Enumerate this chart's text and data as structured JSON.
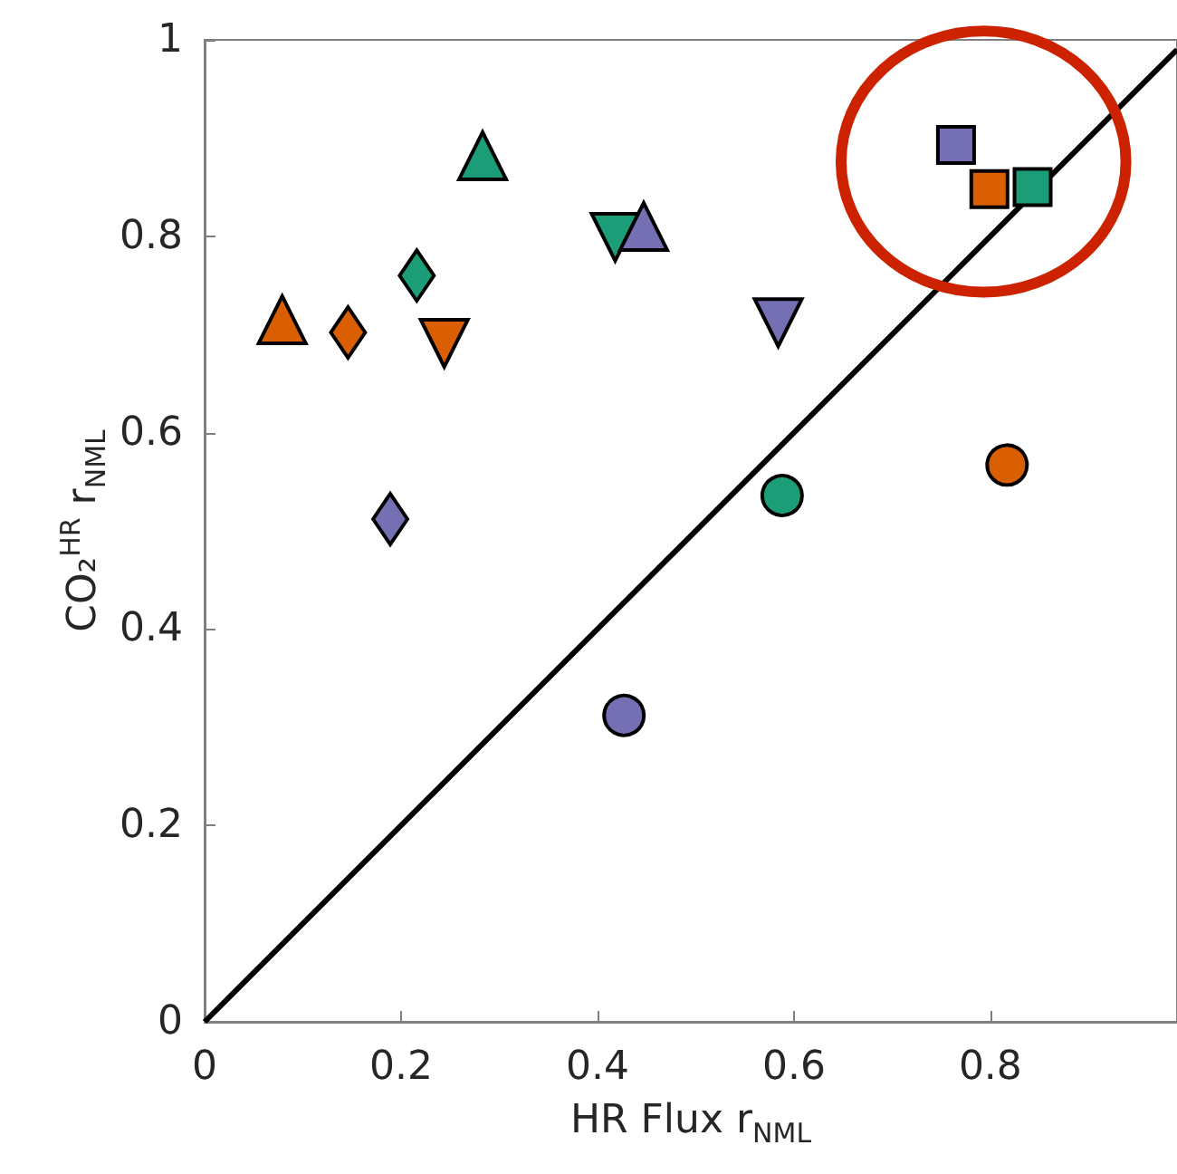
{
  "chart_data": {
    "type": "scatter",
    "xlabel": "HR Flux r$_{NML}$",
    "ylabel": "CO₂$^{HR}$ r$_{NML}$",
    "xlim": [
      0,
      0.99
    ],
    "ylim": [
      0,
      1
    ],
    "xticks": [
      0,
      0.2,
      0.4,
      0.6,
      0.8
    ],
    "yticks": [
      0,
      0.2,
      0.4,
      0.6,
      0.8,
      1
    ],
    "grid": false,
    "series": [
      {
        "type": "line",
        "color": "#000000",
        "marker": "none",
        "line_style": "solid",
        "x": [
          0,
          0.99
        ],
        "values": [
          0,
          0.99
        ]
      },
      {
        "color": "#d95f02",
        "marker": "triangle",
        "x": [
          0.079
        ],
        "values": [
          0.715
        ]
      },
      {
        "color": "#d95f02",
        "marker": "diamond",
        "x": [
          0.146
        ],
        "values": [
          0.702
        ]
      },
      {
        "color": "#d95f02",
        "marker": "triangle-down",
        "x": [
          0.244
        ],
        "values": [
          0.691
        ]
      },
      {
        "color": "#d95f02",
        "marker": "square",
        "x": [
          0.799
        ],
        "values": [
          0.848
        ]
      },
      {
        "color": "#d95f02",
        "marker": "circle",
        "x": [
          0.817
        ],
        "values": [
          0.567
        ]
      },
      {
        "color": "#1b9e77",
        "marker": "triangle",
        "x": [
          0.283
        ],
        "values": [
          0.882
        ]
      },
      {
        "color": "#1b9e77",
        "marker": "diamond",
        "x": [
          0.216
        ],
        "values": [
          0.76
        ]
      },
      {
        "color": "#1b9e77",
        "marker": "triangle-down",
        "x": [
          0.418
        ],
        "values": [
          0.799
        ]
      },
      {
        "color": "#1b9e77",
        "marker": "square",
        "x": [
          0.843
        ],
        "values": [
          0.85
        ]
      },
      {
        "color": "#1b9e77",
        "marker": "circle",
        "x": [
          0.588
        ],
        "values": [
          0.536
        ]
      },
      {
        "color": "#7570b3",
        "marker": "triangle",
        "x": [
          0.447
        ],
        "values": [
          0.81
        ]
      },
      {
        "color": "#7570b3",
        "marker": "diamond",
        "x": [
          0.189
        ],
        "values": [
          0.512
        ]
      },
      {
        "color": "#7570b3",
        "marker": "triangle-down",
        "x": [
          0.584
        ],
        "values": [
          0.712
        ]
      },
      {
        "color": "#7570b3",
        "marker": "square",
        "x": [
          0.765
        ],
        "values": [
          0.893
        ]
      },
      {
        "color": "#7570b3",
        "marker": "circle",
        "x": [
          0.427
        ],
        "values": [
          0.312
        ]
      }
    ]
  }
}
